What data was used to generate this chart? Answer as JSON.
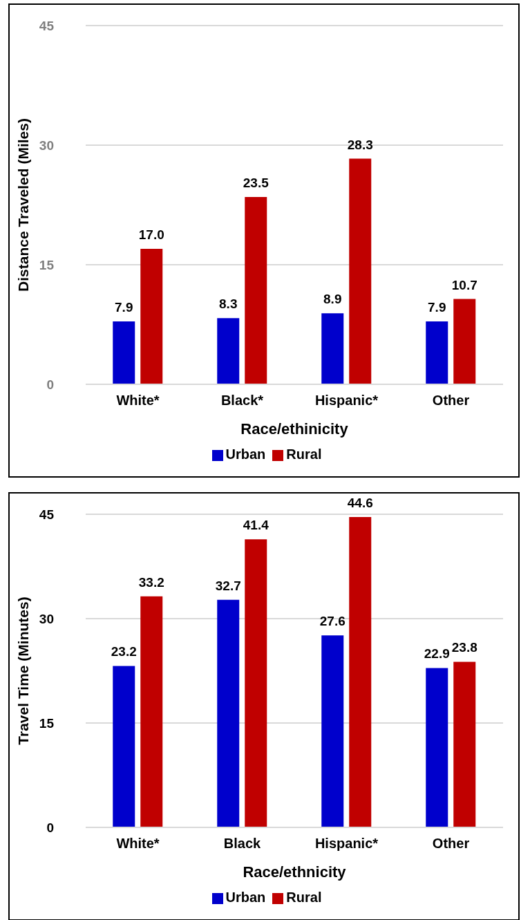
{
  "chart_data": [
    {
      "type": "bar",
      "categories": [
        "White*",
        "Black*",
        "Hispanic*",
        "Other"
      ],
      "xlabel": "Race/ethinicity",
      "ylabel": "Distance Traveled (Miles)",
      "ylim": [
        0,
        45
      ],
      "yticks": [
        0,
        15,
        30,
        45
      ],
      "grid": "y",
      "legend": "bottom",
      "series": [
        {
          "name": "Urban",
          "color": "#0000cc",
          "values": [
            7.9,
            8.3,
            8.9,
            7.9
          ],
          "value_labels": [
            "7.9",
            "8.3",
            "8.9",
            "7.9"
          ]
        },
        {
          "name": "Rural",
          "color": "#c00000",
          "values": [
            17.0,
            23.5,
            28.3,
            10.7
          ],
          "value_labels": [
            "17.0",
            "23.5",
            "28.3",
            "10.7"
          ]
        }
      ]
    },
    {
      "type": "bar",
      "categories": [
        "White*",
        "Black",
        "Hispanic*",
        "Other"
      ],
      "xlabel": "Race/ethnicity",
      "ylabel": "Travel Time (Minutes)",
      "ylim": [
        0,
        45
      ],
      "yticks": [
        0,
        15,
        30,
        45
      ],
      "grid": "y",
      "legend": "bottom",
      "series": [
        {
          "name": "Urban",
          "color": "#0000cc",
          "values": [
            23.2,
            32.7,
            27.6,
            22.9
          ],
          "value_labels": [
            "23.2",
            "32.7",
            "27.6",
            "22.9"
          ]
        },
        {
          "name": "Rural",
          "color": "#c00000",
          "values": [
            33.2,
            41.4,
            44.6,
            23.8
          ],
          "value_labels": [
            "33.2",
            "41.4",
            "44.6",
            "23.8"
          ]
        }
      ]
    }
  ]
}
